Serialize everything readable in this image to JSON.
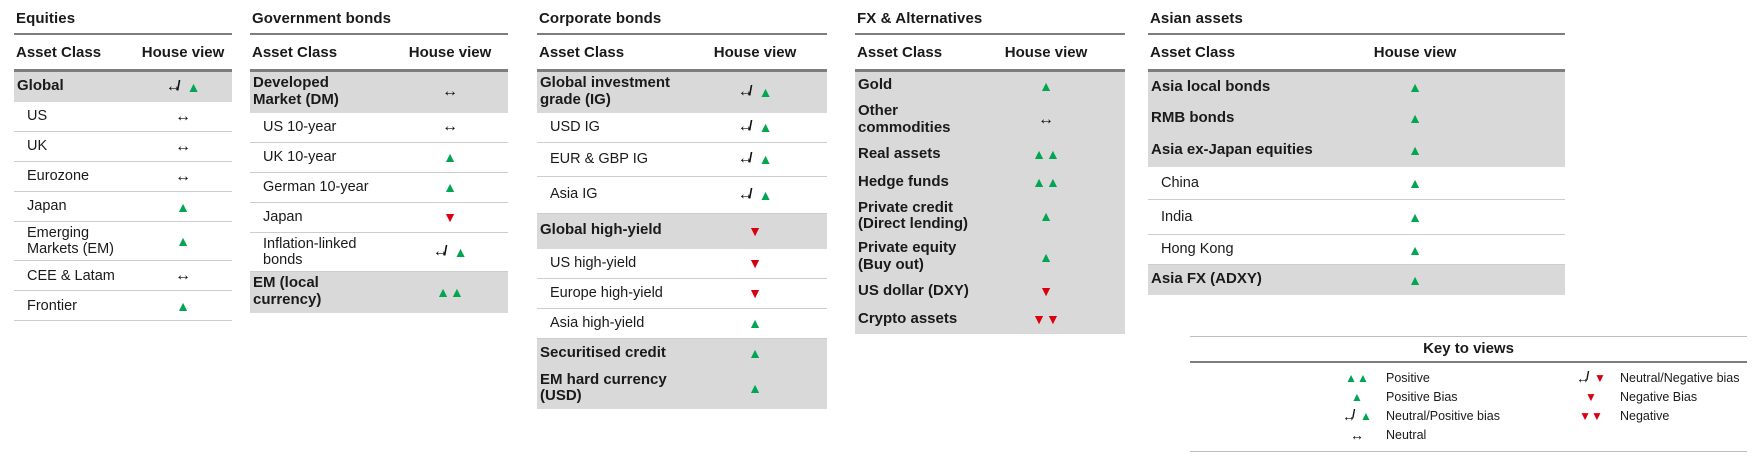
{
  "colors": {
    "green": "#00A651",
    "red": "#DB0011",
    "row_grey": "#D9D9D9"
  },
  "header_labels": {
    "asset": "Asset Class",
    "view": "House view"
  },
  "columns": [
    {
      "title": "Equities",
      "rows": [
        {
          "label": "Global",
          "bold": true,
          "grey": true,
          "view": "neutral_up"
        },
        {
          "label": "US",
          "view": "neutral"
        },
        {
          "label": "UK",
          "view": "neutral"
        },
        {
          "label": "Eurozone",
          "view": "neutral"
        },
        {
          "label": "Japan",
          "view": "up"
        },
        {
          "label": "Emerging\nMarkets (EM)",
          "view": "up"
        },
        {
          "label": "CEE & Latam",
          "view": "neutral"
        },
        {
          "label": "Frontier",
          "view": "up"
        }
      ]
    },
    {
      "title": "Government bonds",
      "rows": [
        {
          "label": "Developed\nMarket (DM)",
          "bold": true,
          "grey": true,
          "view": "neutral"
        },
        {
          "label": "US 10-year",
          "view": "neutral"
        },
        {
          "label": "UK 10-year",
          "view": "up"
        },
        {
          "label": "German 10-year",
          "view": "up"
        },
        {
          "label": "Japan",
          "view": "down"
        },
        {
          "label": "Inflation-linked\nbonds",
          "view": "neutral_up"
        },
        {
          "label": "EM (local\ncurrency)",
          "bold": true,
          "grey": true,
          "view": "up2"
        }
      ]
    },
    {
      "title": "Corporate bonds",
      "rows": [
        {
          "label": "Global investment\ngrade (IG)",
          "bold": true,
          "grey": true,
          "view": "neutral_up"
        },
        {
          "label": "USD IG",
          "view": "neutral_up"
        },
        {
          "label": "EUR & GBP IG",
          "view": "neutral_up"
        },
        {
          "label": "Asia IG",
          "view": "neutral_up"
        },
        {
          "label": "Global high-yield",
          "bold": true,
          "grey": true,
          "view": "down"
        },
        {
          "label": "US high-yield",
          "view": "down"
        },
        {
          "label": "Europe high-yield",
          "view": "down"
        },
        {
          "label": "Asia high-yield",
          "view": "up"
        },
        {
          "label": "Securitised credit",
          "bold": true,
          "grey": true,
          "view": "up"
        },
        {
          "label": "EM hard currency\n(USD)",
          "bold": true,
          "grey": true,
          "view": "up"
        }
      ]
    },
    {
      "title": "FX & Alternatives",
      "rows": [
        {
          "label": "Gold",
          "bold": true,
          "grey": true,
          "view": "up"
        },
        {
          "label": "Other\ncommodities",
          "bold": true,
          "grey": true,
          "view": "neutral"
        },
        {
          "label": "Real assets",
          "bold": true,
          "grey": true,
          "view": "up2"
        },
        {
          "label": "Hedge funds",
          "bold": true,
          "grey": true,
          "view": "up2"
        },
        {
          "label": "Private credit\n(Direct lending)",
          "bold": true,
          "grey": true,
          "view": "up"
        },
        {
          "label": "Private equity\n(Buy out)",
          "bold": true,
          "grey": true,
          "view": "up"
        },
        {
          "label": "US dollar (DXY)",
          "bold": true,
          "grey": true,
          "view": "down"
        },
        {
          "label": "Crypto assets",
          "bold": true,
          "grey": true,
          "view": "down2"
        }
      ]
    },
    {
      "title": "Asian assets",
      "rows": [
        {
          "label": "Asia local bonds",
          "bold": true,
          "grey": true,
          "view": "up"
        },
        {
          "label": "RMB bonds",
          "bold": true,
          "grey": true,
          "view": "up"
        },
        {
          "label": "Asia ex-Japan equities",
          "bold": true,
          "grey": true,
          "view": "up"
        },
        {
          "label": "China",
          "view": "up"
        },
        {
          "label": "India",
          "view": "up"
        },
        {
          "label": "Hong Kong",
          "view": "up"
        },
        {
          "label": "Asia FX (ADXY)",
          "bold": true,
          "grey": true,
          "view": "up"
        }
      ]
    }
  ],
  "key": {
    "title": "Key to views",
    "items_left": [
      {
        "icon": "up2",
        "label": "Positive"
      },
      {
        "icon": "up",
        "label": "Positive Bias"
      },
      {
        "icon": "neutral_up",
        "label": "Neutral/Positive bias"
      },
      {
        "icon": "neutral",
        "label": "Neutral"
      }
    ],
    "items_right": [
      {
        "icon": "neutral_down",
        "label": "Neutral/Negative bias"
      },
      {
        "icon": "down",
        "label": "Negative Bias"
      },
      {
        "icon": "down2",
        "label": "Negative"
      }
    ]
  }
}
